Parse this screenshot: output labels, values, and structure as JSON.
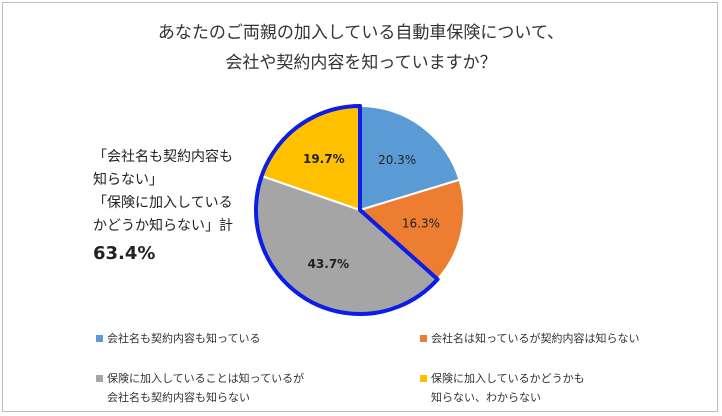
{
  "chart_data": {
    "type": "pie",
    "title_lines": [
      "あなたのご両親の加入している自動車保険について、",
      "会社や契約内容を知っていますか？"
    ],
    "slices": [
      {
        "name": "会社名も契約内容も知っている",
        "value": 20.3,
        "label": "20.3%",
        "color": "#5b9bd5",
        "highlight": false
      },
      {
        "name": "会社名は知っているが契約内容は知らない",
        "value": 16.3,
        "label": "16.3%",
        "color": "#ed7d31",
        "highlight": false
      },
      {
        "name": "保険に加入していることは知っているが\n会社名も契約内容も知らない",
        "value": 43.7,
        "label": "43.7%",
        "color": "#a5a5a5",
        "highlight": true
      },
      {
        "name": "保険に加入しているかどうかも\n知らない、わからない",
        "value": 19.7,
        "label": "19.7%",
        "color": "#ffc000",
        "highlight": true
      }
    ],
    "callout": {
      "lines": [
        "「会社名も契約内容も",
        "知らない」",
        "「保険に加入している",
        "かどうか知らない」計"
      ],
      "total": "63.4%"
    },
    "legend_position": "bottom",
    "highlight_color": "#0b1de6"
  }
}
